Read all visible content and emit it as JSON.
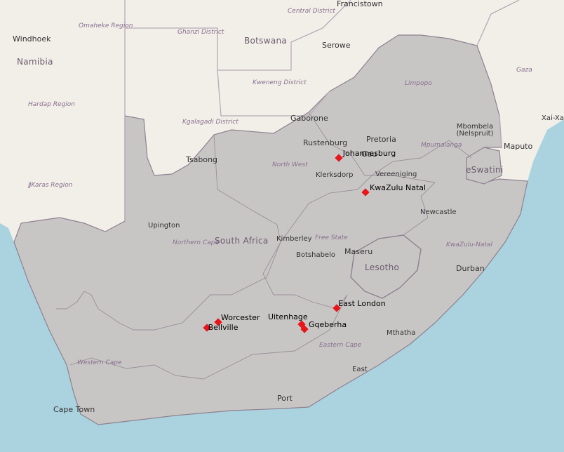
{
  "map": {
    "country_labels": {
      "namibia": "Namibia",
      "botswana": "Botswana",
      "south_africa": "South Africa",
      "lesotho": "Lesotho",
      "eswatini": "eSwatini"
    },
    "region_labels": {
      "omaheke": "Omaheke Region",
      "hardap": "Hardap Region",
      "karas": "ǁKaras Region",
      "ghanzi": "Ghanzi District",
      "kweneng": "Kweneng District",
      "kgalagadi": "Kgalagadi District",
      "central_district": "Central District",
      "limpopo": "Limpopo",
      "mpumalanga": "Mpumalanga",
      "north_west": "North West",
      "free_state": "Free State",
      "northern_cape": "Northern Cape",
      "western_cape": "Western Cape",
      "eastern_cape": "Eastern Cape",
      "kwazulu_natal": "KwaZulu-Natal",
      "gaza": "Gaza"
    },
    "city_labels": {
      "windhoek": "Windhoek",
      "francistown": "Francistown",
      "serowe": "Serowe",
      "gaborone": "Gaborone",
      "tsabong": "Tsabong",
      "rustenburg": "Rustenburg",
      "pretoria": "Pretoria",
      "mbombela": "Mbombela (Nelspruit)",
      "maputo": "Maputo",
      "xai_xai": "Xai-Xai",
      "klerksdorp": "Klerksdorp",
      "vereeniging": "Vereeniging",
      "newcastle": "Newcastle",
      "upington": "Upington",
      "kimberley": "Kimberley",
      "botshabelo": "Botshabelo",
      "maseru": "Maseru",
      "durban": "Durban",
      "mthatha": "Mthatha",
      "east": "East",
      "cape_town": "Cape Town",
      "port": "Port",
      "gauteng_short": "Gau"
    },
    "markers": [
      {
        "name": "Johannesburg",
        "lon": 28.04,
        "lat": -26.2
      },
      {
        "name": "KwaZulu Natal",
        "lon": 29.95,
        "lat": -27.76
      },
      {
        "name": "Worcester",
        "lon": 19.45,
        "lat": -33.65
      },
      {
        "name": "Bellville",
        "lon": 18.63,
        "lat": -33.9
      },
      {
        "name": "Uitenhage",
        "lon": 25.4,
        "lat": -33.76
      },
      {
        "name": "Gqeberha",
        "lon": 25.6,
        "lat": -33.96
      },
      {
        "name": "East London",
        "lon": 27.91,
        "lat": -33.02
      }
    ],
    "colors": {
      "ocean": "#aad3df",
      "land": "#f2efe9",
      "highlight": "#c8c6c5",
      "border": "#8e8190",
      "marker": "#e8151a"
    }
  }
}
